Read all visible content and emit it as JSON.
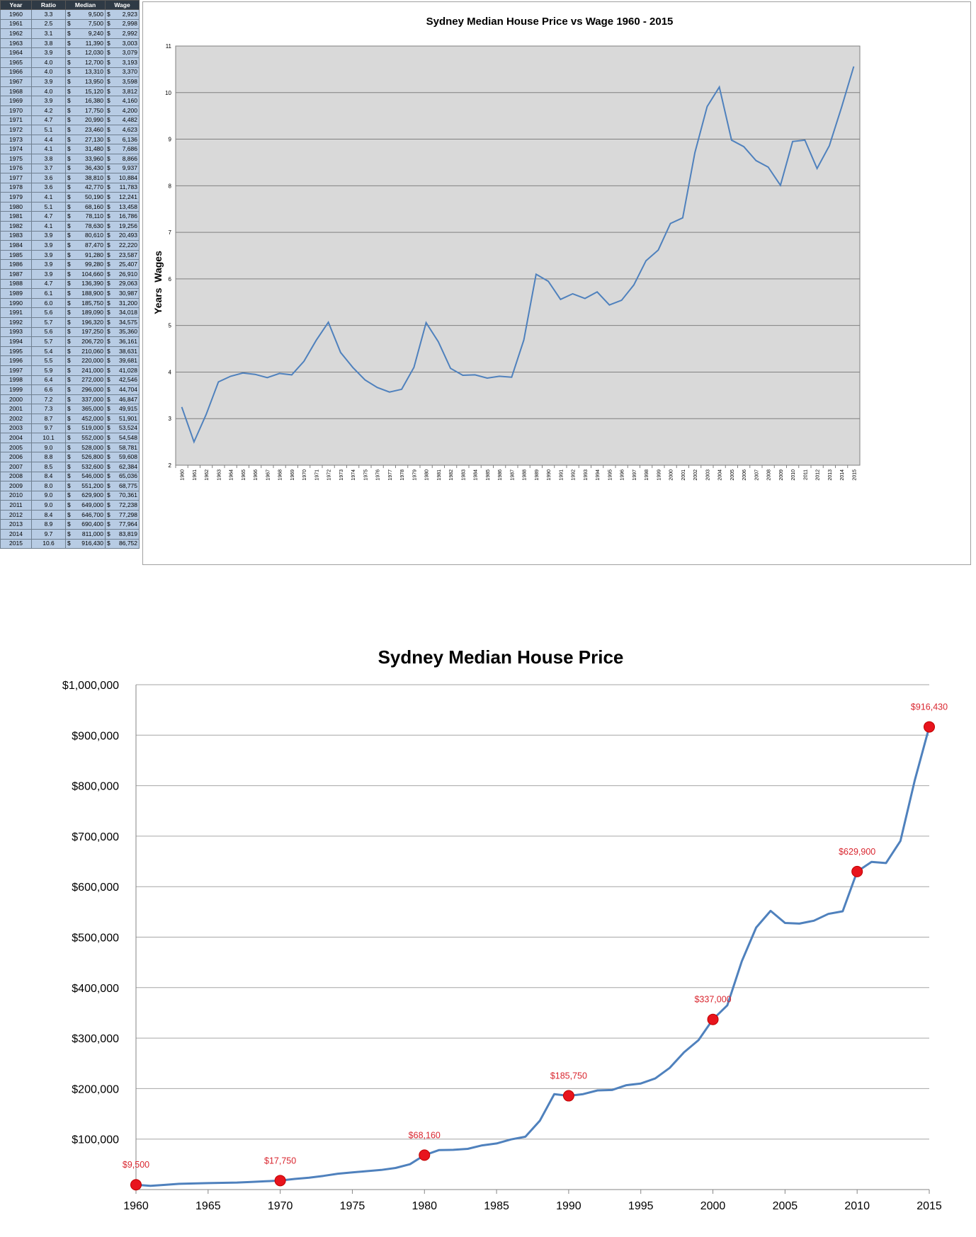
{
  "table": {
    "headers": [
      "Year",
      "Ratio",
      "Median",
      "Wage"
    ],
    "rows": [
      [
        "1960",
        "3.3",
        "9,500",
        "2,923"
      ],
      [
        "1961",
        "2.5",
        "7,500",
        "2,998"
      ],
      [
        "1962",
        "3.1",
        "9,240",
        "2,992"
      ],
      [
        "1963",
        "3.8",
        "11,390",
        "3,003"
      ],
      [
        "1964",
        "3.9",
        "12,030",
        "3,079"
      ],
      [
        "1965",
        "4.0",
        "12,700",
        "3,193"
      ],
      [
        "1966",
        "4.0",
        "13,310",
        "3,370"
      ],
      [
        "1967",
        "3.9",
        "13,950",
        "3,598"
      ],
      [
        "1968",
        "4.0",
        "15,120",
        "3,812"
      ],
      [
        "1969",
        "3.9",
        "16,380",
        "4,160"
      ],
      [
        "1970",
        "4.2",
        "17,750",
        "4,200"
      ],
      [
        "1971",
        "4.7",
        "20,990",
        "4,482"
      ],
      [
        "1972",
        "5.1",
        "23,460",
        "4,623"
      ],
      [
        "1973",
        "4.4",
        "27,130",
        "6,136"
      ],
      [
        "1974",
        "4.1",
        "31,480",
        "7,686"
      ],
      [
        "1975",
        "3.8",
        "33,960",
        "8,866"
      ],
      [
        "1976",
        "3.7",
        "36,430",
        "9,937"
      ],
      [
        "1977",
        "3.6",
        "38,810",
        "10,884"
      ],
      [
        "1978",
        "3.6",
        "42,770",
        "11,783"
      ],
      [
        "1979",
        "4.1",
        "50,190",
        "12,241"
      ],
      [
        "1980",
        "5.1",
        "68,160",
        "13,458"
      ],
      [
        "1981",
        "4.7",
        "78,110",
        "16,786"
      ],
      [
        "1982",
        "4.1",
        "78,630",
        "19,256"
      ],
      [
        "1983",
        "3.9",
        "80,610",
        "20,493"
      ],
      [
        "1984",
        "3.9",
        "87,470",
        "22,220"
      ],
      [
        "1985",
        "3.9",
        "91,280",
        "23,587"
      ],
      [
        "1986",
        "3.9",
        "99,280",
        "25,407"
      ],
      [
        "1987",
        "3.9",
        "104,660",
        "26,910"
      ],
      [
        "1988",
        "4.7",
        "136,390",
        "29,063"
      ],
      [
        "1989",
        "6.1",
        "188,900",
        "30,987"
      ],
      [
        "1990",
        "6.0",
        "185,750",
        "31,200"
      ],
      [
        "1991",
        "5.6",
        "189,090",
        "34,018"
      ],
      [
        "1992",
        "5.7",
        "196,320",
        "34,575"
      ],
      [
        "1993",
        "5.6",
        "197,250",
        "35,360"
      ],
      [
        "1994",
        "5.7",
        "206,720",
        "36,161"
      ],
      [
        "1995",
        "5.4",
        "210,060",
        "38,631"
      ],
      [
        "1996",
        "5.5",
        "220,000",
        "39,681"
      ],
      [
        "1997",
        "5.9",
        "241,000",
        "41,028"
      ],
      [
        "1998",
        "6.4",
        "272,000",
        "42,546"
      ],
      [
        "1999",
        "6.6",
        "296,000",
        "44,704"
      ],
      [
        "2000",
        "7.2",
        "337,000",
        "46,847"
      ],
      [
        "2001",
        "7.3",
        "365,000",
        "49,915"
      ],
      [
        "2002",
        "8.7",
        "452,000",
        "51,901"
      ],
      [
        "2003",
        "9.7",
        "519,000",
        "53,524"
      ],
      [
        "2004",
        "10.1",
        "552,000",
        "54,548"
      ],
      [
        "2005",
        "9.0",
        "528,000",
        "58,781"
      ],
      [
        "2006",
        "8.8",
        "526,800",
        "59,608"
      ],
      [
        "2007",
        "8.5",
        "532,600",
        "62,384"
      ],
      [
        "2008",
        "8.4",
        "546,000",
        "65,036"
      ],
      [
        "2009",
        "8.0",
        "551,200",
        "68,775"
      ],
      [
        "2010",
        "9.0",
        "629,900",
        "70,361"
      ],
      [
        "2011",
        "9.0",
        "649,000",
        "72,238"
      ],
      [
        "2012",
        "8.4",
        "646,700",
        "77,298"
      ],
      [
        "2013",
        "8.9",
        "690,400",
        "77,964"
      ],
      [
        "2014",
        "9.7",
        "811,000",
        "83,819"
      ],
      [
        "2015",
        "10.6",
        "916,430",
        "86,752"
      ]
    ],
    "currency_symbol": "$"
  },
  "chart_data": [
    {
      "type": "line",
      "title": "Sydney Median House Price vs Wage 1960 - 2015",
      "xlabel": "",
      "ylabel": "Years  Wages",
      "ylim": [
        2,
        11
      ],
      "yticks": [
        2,
        3,
        4,
        5,
        6,
        7,
        8,
        9,
        10,
        11
      ],
      "grid": true,
      "background": "#d9d9d9",
      "line_color": "#4f81bd",
      "categories": [
        "1960",
        "1961",
        "1962",
        "1963",
        "1964",
        "1965",
        "1966",
        "1967",
        "1968",
        "1969",
        "1970",
        "1971",
        "1972",
        "1973",
        "1974",
        "1975",
        "1976",
        "1977",
        "1978",
        "1979",
        "1980",
        "1981",
        "1982",
        "1983",
        "1984",
        "1985",
        "1986",
        "1987",
        "1988",
        "1989",
        "1990",
        "1991",
        "1992",
        "1993",
        "1994",
        "1995",
        "1996",
        "1997",
        "1998",
        "1999",
        "2000",
        "2001",
        "2002",
        "2003",
        "2004",
        "2005",
        "2006",
        "2007",
        "2008",
        "2009",
        "2010",
        "2011",
        "2012",
        "2013",
        "2014",
        "2015"
      ],
      "values": [
        3.25,
        2.5,
        3.09,
        3.79,
        3.91,
        3.98,
        3.95,
        3.88,
        3.97,
        3.94,
        4.23,
        4.68,
        5.07,
        4.42,
        4.1,
        3.83,
        3.67,
        3.57,
        3.63,
        4.1,
        5.06,
        4.65,
        4.08,
        3.93,
        3.94,
        3.87,
        3.91,
        3.89,
        4.69,
        6.1,
        5.95,
        5.56,
        5.68,
        5.58,
        5.72,
        5.44,
        5.54,
        5.87,
        6.39,
        6.62,
        7.19,
        7.31,
        8.71,
        9.7,
        10.12,
        8.98,
        8.84,
        8.54,
        8.4,
        8.01,
        8.95,
        8.98,
        8.37,
        8.86,
        9.68,
        10.56
      ]
    },
    {
      "type": "line",
      "title": "Sydney Median House Price",
      "xlabel": "",
      "ylabel": "",
      "ylim": [
        0,
        1000000
      ],
      "yticks": [
        "$100,000",
        "$200,000",
        "$300,000",
        "$400,000",
        "$500,000",
        "$600,000",
        "$700,000",
        "$800,000",
        "$900,000",
        "$1,000,000"
      ],
      "xticks": [
        "1960",
        "1965",
        "1970",
        "1975",
        "1980",
        "1985",
        "1990",
        "1995",
        "2000",
        "2005",
        "2010",
        "2015"
      ],
      "grid": true,
      "line_color": "#4f81bd",
      "marker_color": "#e8141d",
      "label_color": "#d9262f",
      "x": [
        1960,
        1961,
        1962,
        1963,
        1964,
        1965,
        1966,
        1967,
        1968,
        1969,
        1970,
        1971,
        1972,
        1973,
        1974,
        1975,
        1976,
        1977,
        1978,
        1979,
        1980,
        1981,
        1982,
        1983,
        1984,
        1985,
        1986,
        1987,
        1988,
        1989,
        1990,
        1991,
        1992,
        1993,
        1994,
        1995,
        1996,
        1997,
        1998,
        1999,
        2000,
        2001,
        2002,
        2003,
        2004,
        2005,
        2006,
        2007,
        2008,
        2009,
        2010,
        2011,
        2012,
        2013,
        2014,
        2015
      ],
      "values": [
        9500,
        7500,
        9240,
        11390,
        12030,
        12700,
        13310,
        13950,
        15120,
        16380,
        17750,
        20990,
        23460,
        27130,
        31480,
        33960,
        36430,
        38810,
        42770,
        50190,
        68160,
        78110,
        78630,
        80610,
        87470,
        91280,
        99280,
        104660,
        136390,
        188900,
        185750,
        189090,
        196320,
        197250,
        206720,
        210060,
        220000,
        241000,
        272000,
        296000,
        337000,
        365000,
        452000,
        519000,
        552000,
        528000,
        526800,
        532600,
        546000,
        551200,
        629900,
        649000,
        646700,
        690400,
        811000,
        916430
      ],
      "highlights": [
        {
          "x": 1960,
          "y": 9500,
          "label": "$9,500"
        },
        {
          "x": 1970,
          "y": 17750,
          "label": "$17,750"
        },
        {
          "x": 1980,
          "y": 68160,
          "label": "$68,160"
        },
        {
          "x": 1990,
          "y": 185750,
          "label": "$185,750"
        },
        {
          "x": 2000,
          "y": 337000,
          "label": "$337,000"
        },
        {
          "x": 2010,
          "y": 629900,
          "label": "$629,900"
        },
        {
          "x": 2015,
          "y": 916430,
          "label": "$916,430"
        }
      ]
    }
  ]
}
